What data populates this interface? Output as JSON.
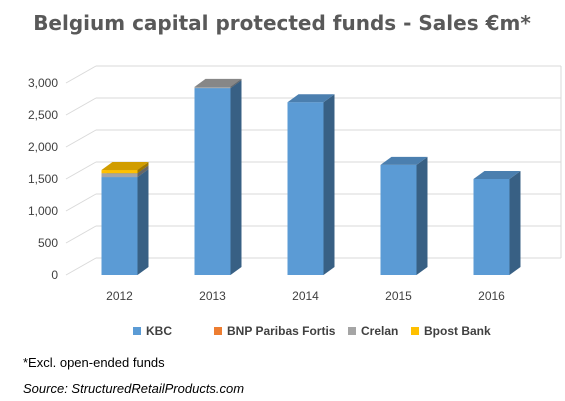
{
  "colors": {
    "KBC": "#5b9bd5",
    "BNP Paribas Fortis": "#ed7d31",
    "Crelan": "#a5a5a5",
    "Bpost Bank": "#ffc000"
  },
  "chart_data": {
    "type": "bar",
    "title": "Belgium capital protected funds - Sales €m*",
    "categories": [
      "2012",
      "2013",
      "2014",
      "2015",
      "2016"
    ],
    "series": [
      {
        "name": "KBC",
        "values": [
          1530,
          2920,
          2700,
          1720,
          1500
        ]
      },
      {
        "name": "BNP Paribas Fortis",
        "values": [
          0,
          0,
          0,
          0,
          0
        ]
      },
      {
        "name": "Crelan",
        "values": [
          60,
          20,
          0,
          0,
          0
        ]
      },
      {
        "name": "Bpost Bank",
        "values": [
          50,
          0,
          0,
          0,
          0
        ]
      }
    ],
    "stacked": true,
    "three_d": true,
    "ylim": [
      0,
      3000
    ],
    "yticks": [
      0,
      500,
      1000,
      1500,
      2000,
      2500,
      3000
    ],
    "ytick_labels": [
      "0",
      "500",
      "1,000",
      "1,500",
      "2,000",
      "2,500",
      "3,000"
    ],
    "xlabel": "",
    "ylabel": "",
    "grid": true,
    "legend_position": "bottom"
  },
  "footnote": "*Excl. open-ended funds",
  "source": "Source: StructuredRetailProducts.com"
}
